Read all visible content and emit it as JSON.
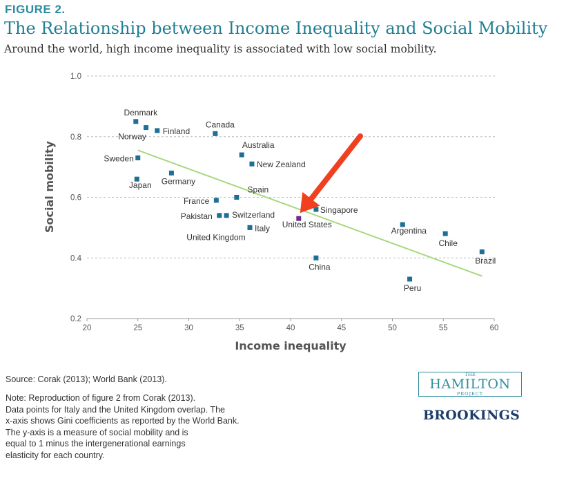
{
  "header": {
    "figure_label": "FIGURE 2.",
    "title": "The Relationship between Income Inequality and Social Mobility",
    "subtitle": "Around the world, high income inequality is associated with low social mobility."
  },
  "chart_data": {
    "type": "scatter",
    "xlabel": "Income inequality",
    "ylabel": "Social mobility",
    "xlim": [
      20,
      60
    ],
    "ylim": [
      0.2,
      1.0
    ],
    "x_ticks": [
      "20",
      "25",
      "30",
      "35",
      "40",
      "45",
      "50",
      "55",
      "60"
    ],
    "y_ticks": [
      "0.2",
      "0.4",
      "0.6",
      "0.8",
      "1.0"
    ],
    "grid": "horizontal dashed",
    "points": [
      {
        "label": "Denmark",
        "x": 24.8,
        "y": 0.85
      },
      {
        "label": "Norway",
        "x": 25.8,
        "y": 0.83
      },
      {
        "label": "Finland",
        "x": 26.9,
        "y": 0.82
      },
      {
        "label": "Canada",
        "x": 32.6,
        "y": 0.81
      },
      {
        "label": "Sweden",
        "x": 25.0,
        "y": 0.73
      },
      {
        "label": "Australia",
        "x": 35.2,
        "y": 0.74
      },
      {
        "label": "New Zealand",
        "x": 36.2,
        "y": 0.71
      },
      {
        "label": "Germany",
        "x": 28.3,
        "y": 0.68
      },
      {
        "label": "Japan",
        "x": 24.9,
        "y": 0.66
      },
      {
        "label": "Spain",
        "x": 34.7,
        "y": 0.6
      },
      {
        "label": "France",
        "x": 32.7,
        "y": 0.59
      },
      {
        "label": "Singapore",
        "x": 42.5,
        "y": 0.56
      },
      {
        "label": "Pakistan",
        "x": 33.0,
        "y": 0.54
      },
      {
        "label": "Switzerland",
        "x": 33.7,
        "y": 0.54
      },
      {
        "label": "United States",
        "x": 40.8,
        "y": 0.53,
        "highlight": true
      },
      {
        "label": "Italy",
        "x": 36.0,
        "y": 0.5
      },
      {
        "label": "United Kingdom",
        "x": 36.0,
        "y": 0.5
      },
      {
        "label": "Argentina",
        "x": 51.0,
        "y": 0.51
      },
      {
        "label": "Chile",
        "x": 55.2,
        "y": 0.48
      },
      {
        "label": "Brazil",
        "x": 58.8,
        "y": 0.42
      },
      {
        "label": "China",
        "x": 42.5,
        "y": 0.4
      },
      {
        "label": "Peru",
        "x": 51.7,
        "y": 0.33
      }
    ],
    "trendline": {
      "x": [
        25,
        58.8
      ],
      "y": [
        0.755,
        0.34
      ]
    },
    "colors": {
      "point": "#1d6f94",
      "highlight": "#6b2d8b",
      "trend": "#a8d87e",
      "arrow": "#f04020",
      "grid": "#bbbbbb",
      "axis": "#999999"
    }
  },
  "footer": {
    "source": "Source: Corak (2013); World Bank (2013).",
    "note_lines": [
      "Note: Reproduction of figure 2 from Corak (2013).",
      "Data points for Italy and the United Kingdom overlap. The",
      "x-axis shows Gini coefficients as reported by the World Bank.",
      "The y-axis is a measure of social mobility and is",
      "equal to 1 minus the intergenerational earnings",
      "elasticity for each country."
    ]
  },
  "branding": {
    "hamilton_the": "THE",
    "hamilton_name": "HAMILTON",
    "hamilton_project": "PROJECT",
    "brookings": "BROOKINGS"
  }
}
